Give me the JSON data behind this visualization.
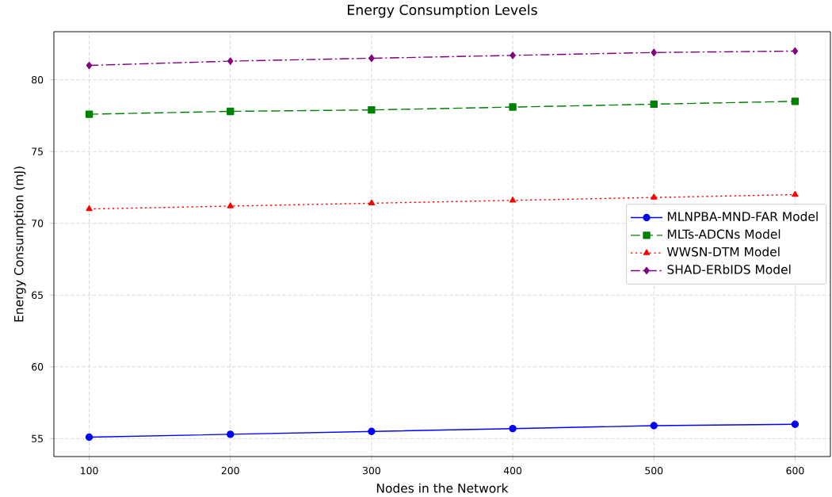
{
  "chart_data": {
    "type": "line",
    "title": "Energy Consumption Levels",
    "xlabel": "Nodes in the Network",
    "ylabel": "Energy Consumption (mJ)",
    "x": [
      100,
      200,
      300,
      400,
      500,
      600
    ],
    "series": [
      {
        "name": "MLNPBA-MND-FAR Model",
        "color": "#0000ff",
        "marker": "circle",
        "line_style": "solid",
        "values": [
          55.1,
          55.3,
          55.5,
          55.7,
          55.9,
          56.0
        ]
      },
      {
        "name": "MLTs-ADCNs Model",
        "color": "#008000",
        "marker": "square",
        "line_style": "dashed",
        "values": [
          77.6,
          77.8,
          77.9,
          78.1,
          78.3,
          78.5
        ]
      },
      {
        "name": "WWSN-DTM Model",
        "color": "#ff0000",
        "marker": "triangle",
        "line_style": "dotted",
        "values": [
          71.0,
          71.2,
          71.4,
          71.6,
          71.8,
          72.0
        ]
      },
      {
        "name": "SHAD-ERbIDS Model",
        "color": "#800080",
        "marker": "diamond",
        "line_style": "dashdot",
        "values": [
          81.0,
          81.3,
          81.5,
          81.7,
          81.9,
          82.0
        ]
      }
    ],
    "xlim": [
      75,
      625
    ],
    "ylim": [
      53.75,
      83.35
    ],
    "xticks": [
      100,
      200,
      300,
      400,
      500,
      600
    ],
    "yticks": [
      55,
      60,
      65,
      70,
      75,
      80
    ],
    "grid": true,
    "legend": "right"
  }
}
